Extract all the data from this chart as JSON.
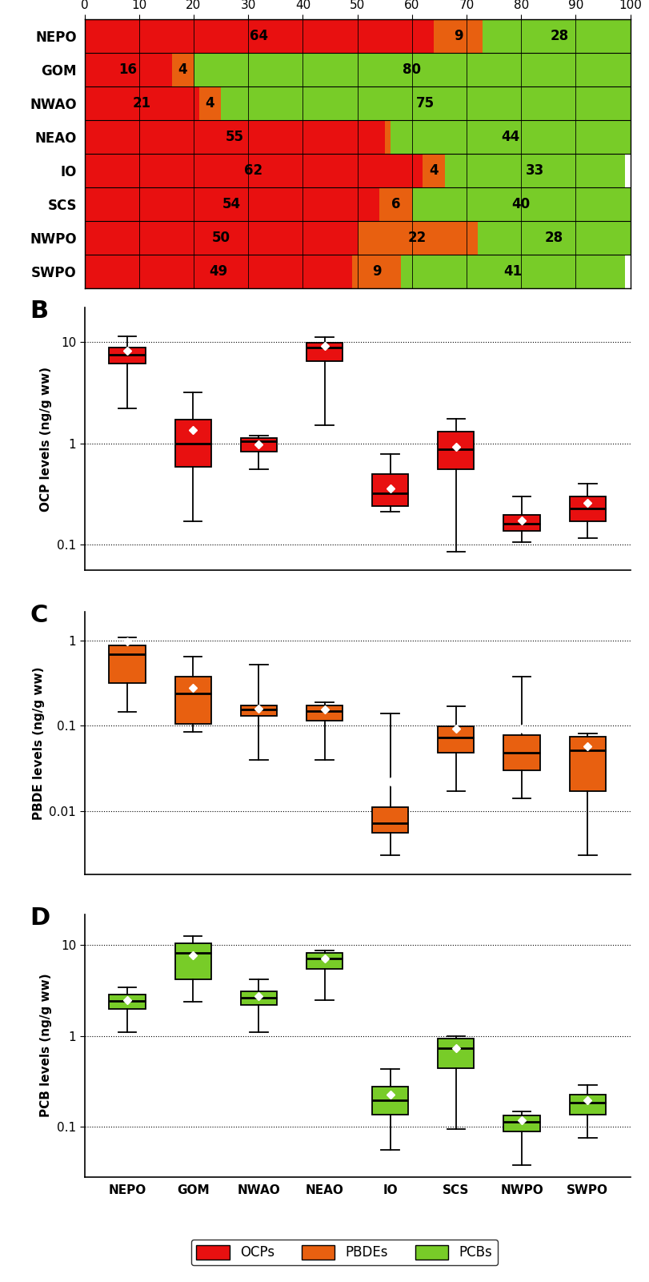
{
  "locations": [
    "NEPO",
    "GOM",
    "NWAO",
    "NEAO",
    "IO",
    "SCS",
    "NWPO",
    "SWPO"
  ],
  "stacked_ocp": [
    64,
    16,
    21,
    55,
    62,
    54,
    50,
    49
  ],
  "stacked_pbde": [
    9,
    4,
    4,
    1,
    4,
    6,
    22,
    9
  ],
  "stacked_pcb": [
    28,
    80,
    75,
    44,
    33,
    40,
    28,
    41
  ],
  "color_ocp": "#e81010",
  "color_pbde": "#e86010",
  "color_pcb": "#78cc28",
  "bar_label_fontsize": 12,
  "ocp_boxes": {
    "NEPO": {
      "q1": 6.2,
      "median": 7.5,
      "q3": 8.8,
      "mean": 8.2,
      "whislo": 2.2,
      "whishi": 11.5
    },
    "GOM": {
      "q1": 0.58,
      "median": 1.0,
      "q3": 1.7,
      "mean": 1.35,
      "whislo": 0.17,
      "whishi": 3.2
    },
    "NWAO": {
      "q1": 0.82,
      "median": 1.05,
      "q3": 1.12,
      "mean": 0.98,
      "whislo": 0.55,
      "whishi": 1.2
    },
    "NEAO": {
      "q1": 6.5,
      "median": 8.8,
      "q3": 9.9,
      "mean": 9.2,
      "whislo": 1.5,
      "whishi": 11.2
    },
    "IO": {
      "q1": 0.24,
      "median": 0.32,
      "q3": 0.5,
      "mean": 0.36,
      "whislo": 0.21,
      "whishi": 0.78
    },
    "SCS": {
      "q1": 0.55,
      "median": 0.88,
      "q3": 1.3,
      "mean": 0.92,
      "whislo": 0.085,
      "whishi": 1.75
    },
    "NWPO": {
      "q1": 0.135,
      "median": 0.16,
      "q3": 0.195,
      "mean": 0.172,
      "whislo": 0.105,
      "whishi": 0.3
    },
    "SWPO": {
      "q1": 0.17,
      "median": 0.225,
      "q3": 0.3,
      "mean": 0.255,
      "whislo": 0.115,
      "whishi": 0.4
    }
  },
  "pbde_boxes": {
    "NEPO": {
      "q1": 0.32,
      "median": 0.7,
      "q3": 0.88,
      "mean": 0.98,
      "whislo": 0.145,
      "whishi": 1.1
    },
    "GOM": {
      "q1": 0.105,
      "median": 0.24,
      "q3": 0.38,
      "mean": 0.28,
      "whislo": 0.085,
      "whishi": 0.65
    },
    "NWAO": {
      "q1": 0.13,
      "median": 0.155,
      "q3": 0.175,
      "mean": 0.158,
      "whislo": 0.04,
      "whishi": 0.52
    },
    "NEAO": {
      "q1": 0.115,
      "median": 0.148,
      "q3": 0.175,
      "mean": 0.155,
      "whislo": 0.04,
      "whishi": 0.19
    },
    "IO": {
      "q1": 0.0055,
      "median": 0.0072,
      "q3": 0.011,
      "mean": 0.022,
      "whislo": 0.003,
      "whishi": 0.14
    },
    "SCS": {
      "q1": 0.048,
      "median": 0.073,
      "q3": 0.098,
      "mean": 0.093,
      "whislo": 0.017,
      "whishi": 0.17
    },
    "NWPO": {
      "q1": 0.03,
      "median": 0.048,
      "q3": 0.078,
      "mean": 0.093,
      "whislo": 0.014,
      "whishi": 0.38
    },
    "SWPO": {
      "q1": 0.017,
      "median": 0.052,
      "q3": 0.075,
      "mean": 0.058,
      "whislo": 0.003,
      "whishi": 0.082
    }
  },
  "pcb_boxes": {
    "NEPO": {
      "q1": 2.0,
      "median": 2.45,
      "q3": 2.85,
      "mean": 2.5,
      "whislo": 1.1,
      "whishi": 3.4
    },
    "GOM": {
      "q1": 4.2,
      "median": 8.2,
      "q3": 10.5,
      "mean": 7.8,
      "whislo": 2.4,
      "whishi": 12.5
    },
    "NWAO": {
      "q1": 2.2,
      "median": 2.65,
      "q3": 3.1,
      "mean": 2.75,
      "whislo": 1.1,
      "whishi": 4.2
    },
    "NEAO": {
      "q1": 5.5,
      "median": 7.2,
      "q3": 8.2,
      "mean": 7.1,
      "whislo": 2.5,
      "whishi": 8.8
    },
    "IO": {
      "q1": 0.135,
      "median": 0.195,
      "q3": 0.275,
      "mean": 0.225,
      "whislo": 0.055,
      "whishi": 0.43
    },
    "SCS": {
      "q1": 0.44,
      "median": 0.73,
      "q3": 0.94,
      "mean": 0.73,
      "whislo": 0.095,
      "whishi": 1.0
    },
    "NWPO": {
      "q1": 0.088,
      "median": 0.112,
      "q3": 0.132,
      "mean": 0.118,
      "whislo": 0.038,
      "whishi": 0.148
    },
    "SWPO": {
      "q1": 0.135,
      "median": 0.185,
      "q3": 0.225,
      "mean": 0.195,
      "whislo": 0.075,
      "whishi": 0.285
    }
  },
  "ocp_ylim": [
    0.055,
    22
  ],
  "pbde_ylim": [
    0.0018,
    2.2
  ],
  "pcb_ylim": [
    0.028,
    22
  ],
  "yticks_ocp": [
    0.1,
    1,
    10
  ],
  "yticks_pbde": [
    0.01,
    0.1,
    1
  ],
  "yticks_pcb": [
    0.1,
    1,
    10
  ],
  "ylabel_ocp": "OCP levels (ng/g ww)",
  "ylabel_pbde": "PBDE levels (ng/g ww)",
  "ylabel_pcb": "PCB levels (ng/g ww)"
}
